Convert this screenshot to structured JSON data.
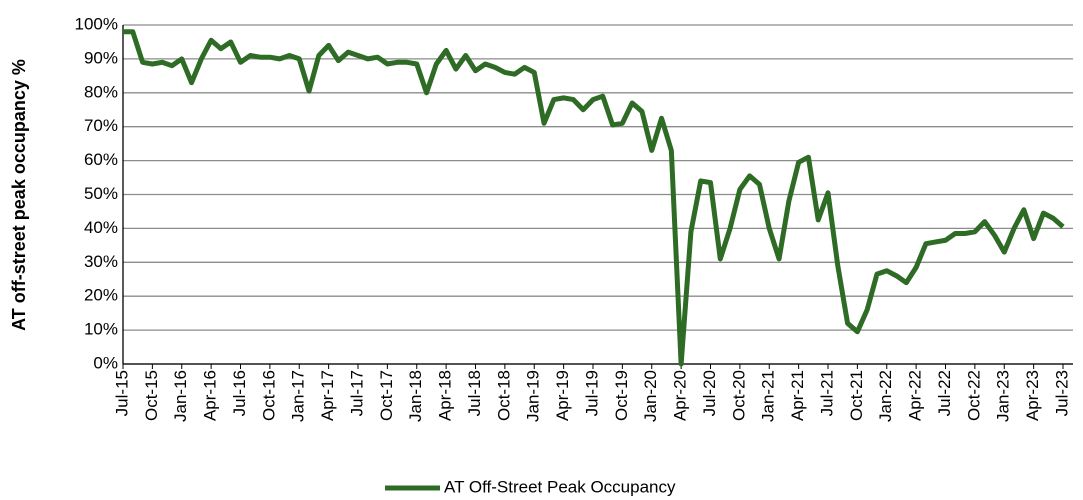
{
  "chart_data": {
    "type": "line",
    "y_label": "AT off-street peak occupancy %",
    "categories": [
      "Jul-15",
      null,
      null,
      "Oct-15",
      null,
      null,
      "Jan-16",
      null,
      null,
      "Apr-16",
      null,
      null,
      "Jul-16",
      null,
      null,
      "Oct-16",
      null,
      null,
      "Jan-17",
      null,
      null,
      "Apr-17",
      null,
      null,
      "Jul-17",
      null,
      null,
      "Oct-17",
      null,
      null,
      "Jan-18",
      null,
      null,
      "Apr-18",
      null,
      null,
      "Jul-18",
      null,
      null,
      "Oct-18",
      null,
      null,
      "Jan-19",
      null,
      null,
      "Apr-19",
      null,
      null,
      "Jul-19",
      null,
      null,
      "Oct-19",
      null,
      null,
      "Jan-20",
      null,
      null,
      "Apr-20",
      null,
      null,
      "Jul-20",
      null,
      null,
      "Oct-20",
      null,
      null,
      "Jan-21",
      null,
      null,
      "Apr-21",
      null,
      null,
      "Jul-21",
      null,
      null,
      "Oct-21",
      null,
      null,
      "Jan-22",
      null,
      null,
      "Apr-22",
      null,
      null,
      "Jul-22",
      null,
      null,
      "Oct-22",
      null,
      null,
      "Jan-23",
      null,
      null,
      "Apr-23",
      null,
      null,
      "Jul-23"
    ],
    "series": [
      {
        "name": "AT Off-Street Peak Occupancy",
        "color": "#2e6b25",
        "values": [
          98,
          98,
          89,
          88.5,
          89,
          88,
          90,
          83,
          90,
          95.5,
          93,
          95,
          89,
          91,
          90.5,
          90.5,
          90,
          91,
          90,
          80.5,
          91,
          94,
          89.5,
          92,
          91,
          90,
          90.5,
          88.5,
          89,
          89,
          88.5,
          80,
          88.5,
          92.5,
          87,
          91,
          86.5,
          88.5,
          87.5,
          86,
          85.5,
          87.5,
          86,
          71,
          78,
          78.5,
          78,
          75,
          78,
          79,
          70.5,
          71,
          77,
          74.5,
          63,
          72.5,
          63,
          0,
          39,
          54,
          53.5,
          31,
          40,
          51.5,
          55.5,
          53,
          40,
          31,
          48,
          59.5,
          61,
          42.5,
          50.5,
          29,
          12,
          9.5,
          16,
          26.5,
          27.5,
          26,
          24,
          28.5,
          35.5,
          36,
          36.5,
          38.5,
          38.5,
          39,
          42,
          38,
          33,
          40,
          45.5,
          37,
          44.5,
          43,
          40.5
        ]
      }
    ],
    "ylim": [
      0,
      100
    ],
    "yticks": [
      {
        "value": 0,
        "label": "0%"
      },
      {
        "value": 10,
        "label": "10%"
      },
      {
        "value": 20,
        "label": "20%"
      },
      {
        "value": 30,
        "label": "30%"
      },
      {
        "value": 40,
        "label": "40%"
      },
      {
        "value": 50,
        "label": "50%"
      },
      {
        "value": 60,
        "label": "60%"
      },
      {
        "value": 70,
        "label": "70%"
      },
      {
        "value": 80,
        "label": "80%"
      },
      {
        "value": 90,
        "label": "90%"
      },
      {
        "value": 100,
        "label": "100%"
      }
    ],
    "grid": true,
    "legend": "bottom"
  }
}
